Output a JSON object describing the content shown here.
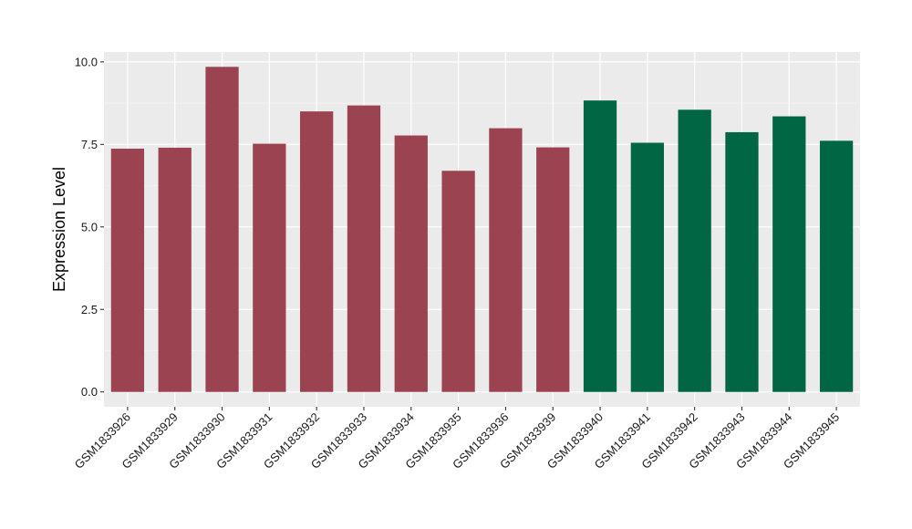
{
  "chart_data": {
    "type": "bar",
    "title": "",
    "xlabel": "",
    "ylabel": "Expression Level",
    "ylim": [
      -0.45,
      10.3
    ],
    "yticks": [
      0.0,
      2.5,
      5.0,
      7.5,
      10.0
    ],
    "ytick_labels": [
      "0.0",
      "2.5",
      "5.0",
      "7.5",
      "10.0"
    ],
    "grid": true,
    "legend": "none",
    "categories": [
      "GSM1833926",
      "GSM1833929",
      "GSM1833930",
      "GSM1833931",
      "GSM1833932",
      "GSM1833933",
      "GSM1833934",
      "GSM1833935",
      "GSM1833936",
      "GSM1833939",
      "GSM1833940",
      "GSM1833941",
      "GSM1833942",
      "GSM1833943",
      "GSM1833944",
      "GSM1833945"
    ],
    "values": [
      7.37,
      7.4,
      9.85,
      7.52,
      8.5,
      8.68,
      7.77,
      6.7,
      7.99,
      7.41,
      8.83,
      7.55,
      8.55,
      7.87,
      8.35,
      7.61
    ],
    "bar_colors": [
      "#9b4350",
      "#9b4350",
      "#9b4350",
      "#9b4350",
      "#9b4350",
      "#9b4350",
      "#9b4350",
      "#9b4350",
      "#9b4350",
      "#9b4350",
      "#006644",
      "#006644",
      "#006644",
      "#006644",
      "#006644",
      "#006644"
    ],
    "colors": {
      "panel_background": "#ebebeb",
      "grid_major": "#ffffff",
      "grid_minor": "#f5f5f5",
      "tick": "#333333"
    }
  }
}
